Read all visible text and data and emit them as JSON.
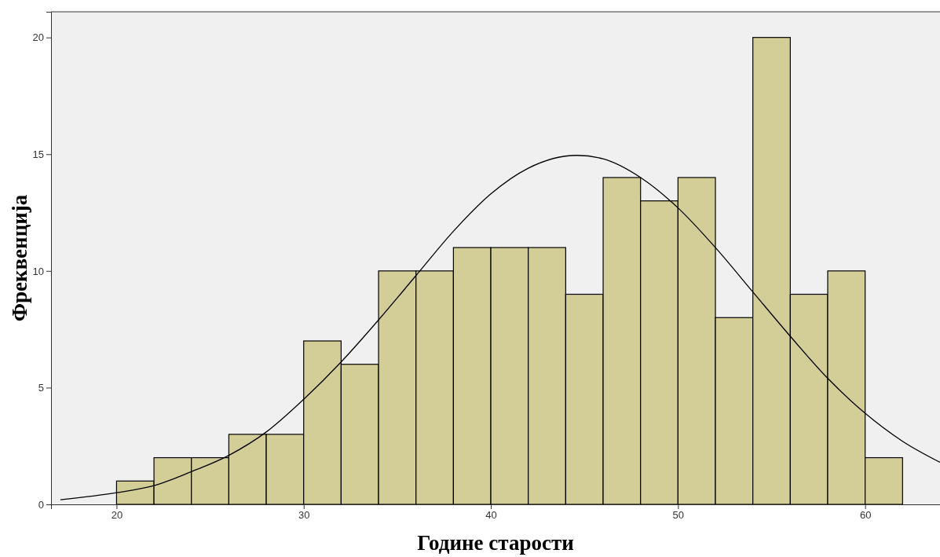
{
  "chart_data": {
    "type": "histogram",
    "xlabel": "Године старости",
    "ylabel": "Фреквенција",
    "bins": [
      20,
      22,
      24,
      26,
      28,
      30,
      32,
      34,
      36,
      38,
      40,
      42,
      44,
      46,
      48,
      50,
      52,
      54,
      56,
      58,
      60,
      62
    ],
    "values": [
      1,
      2,
      2,
      3,
      3,
      7,
      6,
      10,
      10,
      11,
      11,
      11,
      9,
      14,
      13,
      14,
      8,
      20,
      9,
      10,
      2
    ],
    "color": "#d3ce97",
    "series": [
      {
        "type": "line",
        "color": "#000000",
        "x": [
          17,
          20,
          22,
          24,
          26,
          28,
          30,
          32,
          34,
          36,
          38,
          40,
          42,
          44.6,
          46,
          48,
          50,
          52,
          54,
          56,
          58,
          60,
          62,
          64
        ],
        "values": [
          0.2,
          0.5,
          0.8,
          1.4,
          2.1,
          3.1,
          4.5,
          6.1,
          7.9,
          9.8,
          11.7,
          13.3,
          14.4,
          14.95,
          14.8,
          14.0,
          12.7,
          11.0,
          9.1,
          7.2,
          5.4,
          3.9,
          2.7,
          1.8
        ]
      }
    ],
    "xlim": [
      16.5,
      64
    ],
    "ylim": [
      0,
      21.1
    ],
    "xticks": [
      20,
      30,
      40,
      50,
      60
    ],
    "yticks": [
      0,
      5,
      10,
      15,
      20
    ],
    "grid": false
  }
}
